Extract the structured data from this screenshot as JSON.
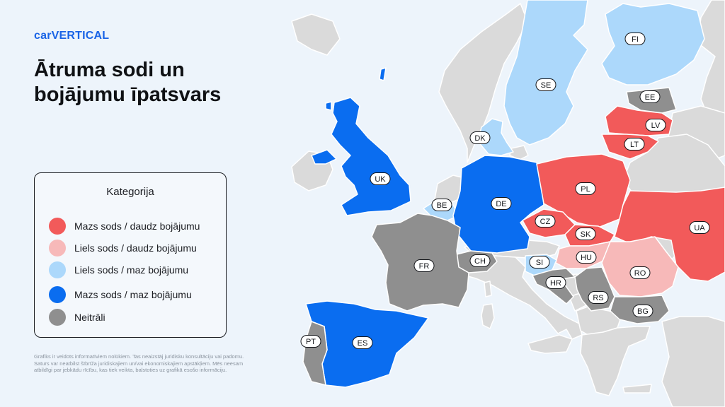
{
  "brand": "carVERTICAL",
  "title": {
    "line1": "Ātruma sodi un",
    "line2": "bojājumu īpatsvars"
  },
  "legend": {
    "title": "Kategorija",
    "items": [
      {
        "key": "low_fine_high_damage",
        "label": "Mazs sods / daudz bojājumu",
        "color": "#f25a5a"
      },
      {
        "key": "high_fine_high_damage",
        "label": "Liels sods / daudz bojājumu",
        "color": "#f7b9b9"
      },
      {
        "key": "high_fine_low_damage",
        "label": "Liels sods / maz bojājumu",
        "color": "#acd8fb"
      },
      {
        "key": "low_fine_low_damage",
        "label": "Mazs sods / maz bojājumu",
        "color": "#0a6df0"
      },
      {
        "key": "neutral",
        "label": "Neitrāli",
        "color": "#8f8f8f"
      }
    ]
  },
  "colors": {
    "background": "#edf4fb",
    "no_data_land": "#dadada",
    "brand": "#1a64e6"
  },
  "countries": [
    {
      "code": "UK",
      "category": "low_fine_low_damage"
    },
    {
      "code": "FR",
      "category": "neutral"
    },
    {
      "code": "ES",
      "category": "low_fine_low_damage"
    },
    {
      "code": "PT",
      "category": "neutral"
    },
    {
      "code": "BE",
      "category": "high_fine_low_damage"
    },
    {
      "code": "DE",
      "category": "low_fine_low_damage"
    },
    {
      "code": "CH",
      "category": "neutral"
    },
    {
      "code": "DK",
      "category": "high_fine_low_damage"
    },
    {
      "code": "SE",
      "category": "high_fine_low_damage"
    },
    {
      "code": "FI",
      "category": "high_fine_low_damage"
    },
    {
      "code": "EE",
      "category": "neutral"
    },
    {
      "code": "LV",
      "category": "low_fine_high_damage"
    },
    {
      "code": "LT",
      "category": "low_fine_high_damage"
    },
    {
      "code": "PL",
      "category": "low_fine_high_damage"
    },
    {
      "code": "CZ",
      "category": "low_fine_high_damage"
    },
    {
      "code": "SK",
      "category": "low_fine_high_damage"
    },
    {
      "code": "UA",
      "category": "low_fine_high_damage"
    },
    {
      "code": "HU",
      "category": "high_fine_high_damage"
    },
    {
      "code": "RO",
      "category": "high_fine_high_damage"
    },
    {
      "code": "SI",
      "category": "high_fine_low_damage"
    },
    {
      "code": "HR",
      "category": "neutral"
    },
    {
      "code": "RS",
      "category": "neutral"
    },
    {
      "code": "BG",
      "category": "neutral"
    }
  ],
  "disclaimer": "Grafiks ir veidots informatīviem nolūkiem. Tas neaizstāj juridisku konsultāciju vai padomu. Saturs var neatbilst šībrīža juridiskajiem un/vai ekonomiskajiem apstākļiem. Mēs neesam atbildīgi par jebkādu rīcību, kas tiek veikta, balstoties uz grafikā esošo informāciju."
}
